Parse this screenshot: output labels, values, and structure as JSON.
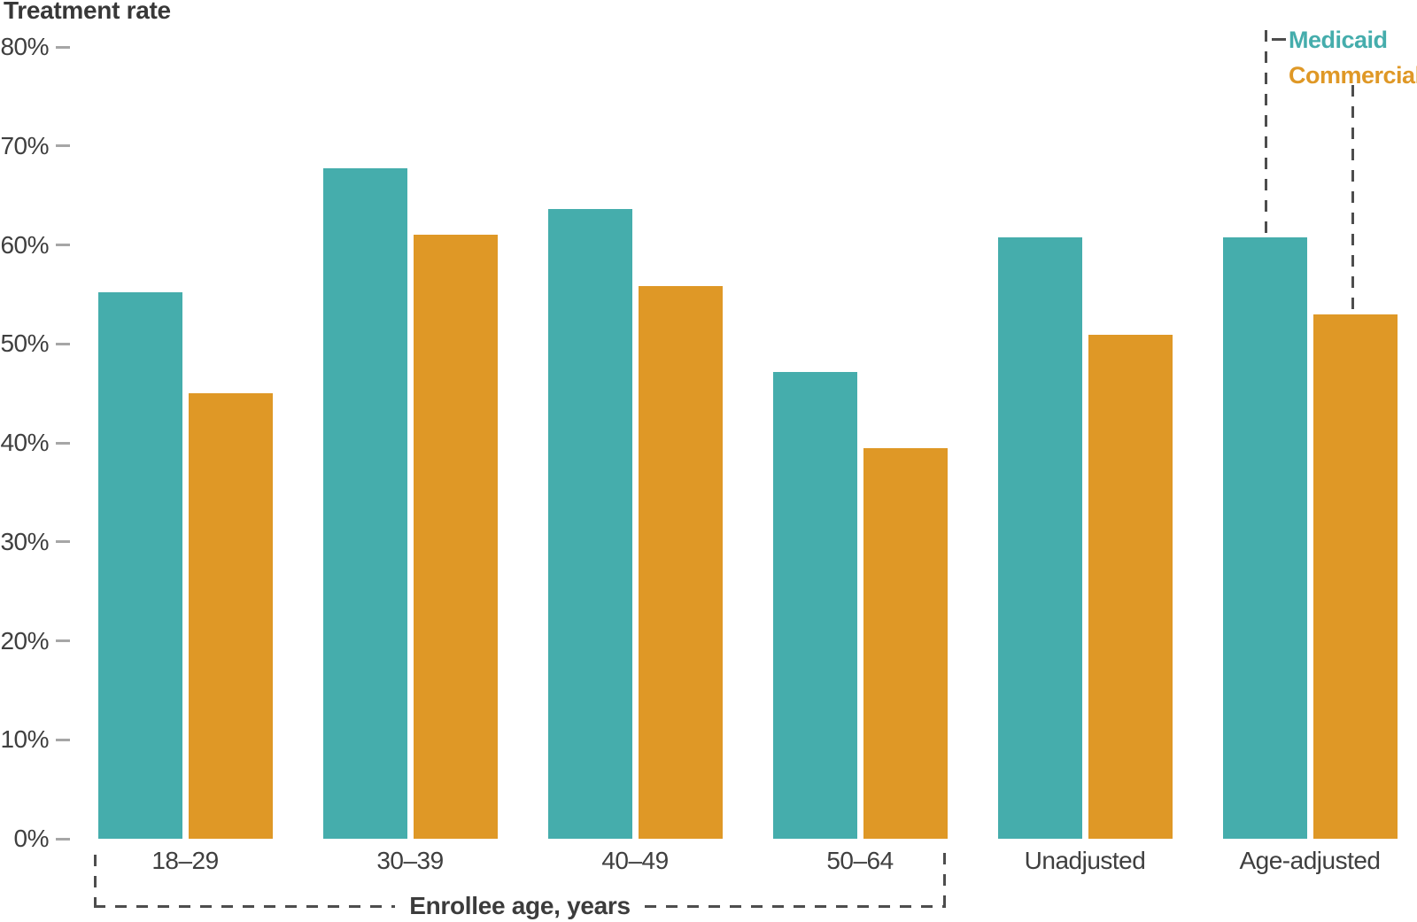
{
  "chart_data": {
    "type": "bar",
    "title": "",
    "ylabel": "Treatment rate",
    "xlabel": "",
    "categories": [
      "18–29",
      "30–39",
      "40–49",
      "50–64",
      "Unadjusted",
      "Age-adjusted"
    ],
    "series": [
      {
        "name": "Medicaid",
        "color": "#45ADAC",
        "values": [
          55.2,
          67.7,
          63.6,
          47.2,
          60.8,
          60.8
        ]
      },
      {
        "name": "Commercial",
        "color": "#DF9826",
        "values": [
          45.0,
          61.0,
          55.8,
          39.5,
          50.9,
          53.0
        ]
      }
    ],
    "ylim": [
      0,
      80
    ],
    "y_ticks": [
      "80%",
      "70%",
      "60%",
      "50%",
      "40%",
      "30%",
      "20%",
      "10%",
      "0%"
    ],
    "y_tick_values": [
      80,
      70,
      60,
      50,
      40,
      30,
      20,
      10,
      0
    ],
    "x_group_label": "Enrollee age, years",
    "x_group_span": [
      "18–29",
      "50–64"
    ],
    "legend_position": "top-right",
    "grid": false,
    "colors": {
      "medicaid": "#45ADAC",
      "commercial": "#DF9826",
      "axis_text": "#3f3f3f",
      "tick_dash": "#a6a6a6",
      "guide_dash": "#4d4d4d"
    }
  }
}
